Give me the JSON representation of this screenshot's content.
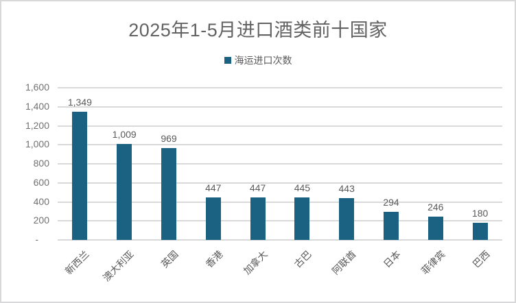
{
  "chart_data": {
    "type": "bar",
    "title": "2025年1-5月进口酒类前十国家",
    "legend_label": "海运进口次数",
    "legend_position": "top-center",
    "categories": [
      "新西兰",
      "澳大利亚",
      "英国",
      "香港",
      "加拿大",
      "古巴",
      "阿联酋",
      "日本",
      "菲律宾",
      "巴西"
    ],
    "values": [
      1349,
      1009,
      969,
      447,
      447,
      445,
      443,
      294,
      246,
      180
    ],
    "data_labels": [
      "1,349",
      "1,009",
      "969",
      "447",
      "447",
      "445",
      "443",
      "294",
      "246",
      "180"
    ],
    "xlabel": "",
    "ylabel": "",
    "ylim": [
      0,
      1600
    ],
    "ytick_step": 200,
    "ytick_labels": [
      "-",
      "200",
      "400",
      "600",
      "800",
      "1,000",
      "1,200",
      "1,400",
      "1,600"
    ],
    "grid": true,
    "colors": {
      "bar": "#1a6182",
      "grid": "#d9d9d9",
      "axis_line": "#d9d9d9",
      "title_text": "#626262",
      "label_text": "#595959",
      "frame_border": "#d8d8db",
      "background": "#ffffff"
    }
  }
}
